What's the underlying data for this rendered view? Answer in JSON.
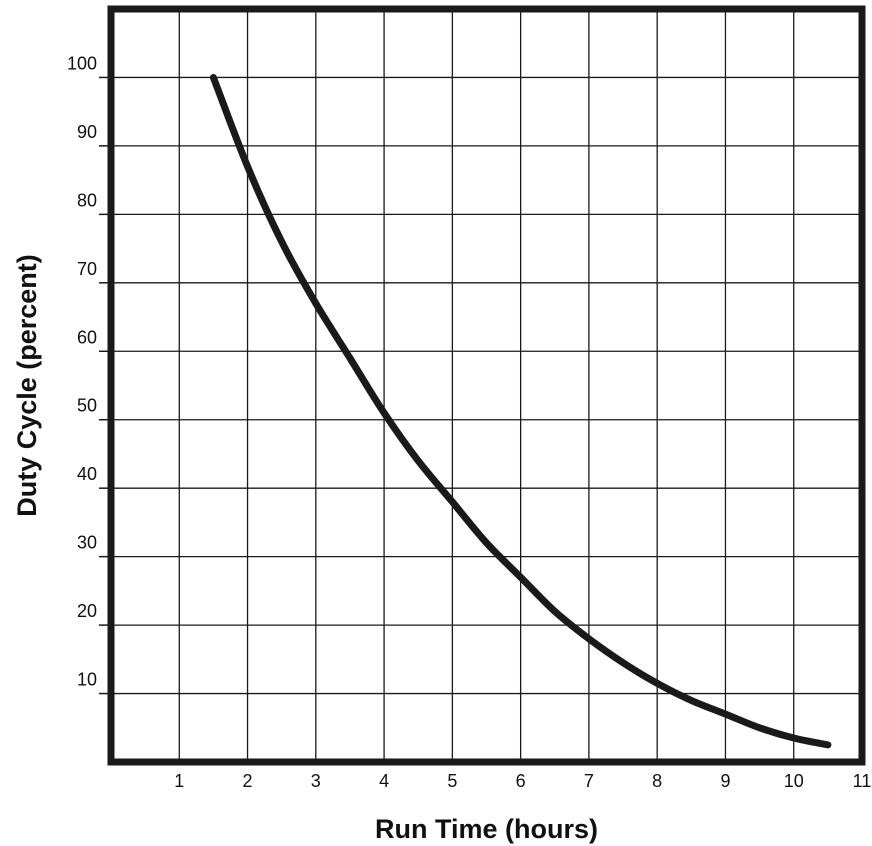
{
  "chart_data": {
    "type": "line",
    "title": "",
    "xlabel": "Run Time (hours)",
    "ylabel": "Duty Cycle (percent)",
    "xlim": [
      0,
      11
    ],
    "ylim": [
      0,
      110
    ],
    "x_ticks": [
      "1",
      "2",
      "3",
      "4",
      "5",
      "6",
      "7",
      "8",
      "9",
      "10",
      "11"
    ],
    "y_ticks": [
      "10",
      "20",
      "30",
      "40",
      "50",
      "60",
      "70",
      "80",
      "90",
      "100"
    ],
    "grid": true,
    "legend": "none",
    "series": [
      {
        "x": [
          1.5,
          2,
          2.5,
          3,
          3.5,
          4,
          4.5,
          5,
          5.5,
          6,
          6.5,
          7,
          7.5,
          8,
          8.5,
          9,
          9.5,
          10,
          10.5
        ],
        "y": [
          100,
          87,
          76,
          67,
          59,
          51,
          44,
          38,
          32,
          27,
          22,
          18,
          14.5,
          11.5,
          9,
          7,
          5,
          3.5,
          2.5
        ],
        "color": "#1a1a1a"
      }
    ]
  }
}
